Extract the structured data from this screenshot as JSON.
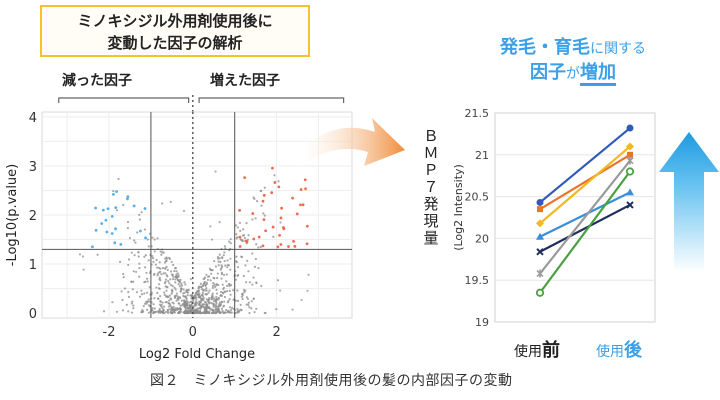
{
  "title": {
    "line1": "ミノキシジル外用剤使用後に",
    "line2": "変動した因子の解析"
  },
  "bracket_labels": {
    "decreased": "減った因子",
    "increased": "増えた因子"
  },
  "headline": {
    "line1_a": "発毛・育毛",
    "line1_b": "に関する",
    "line2_a": "因子",
    "line2_b": "が",
    "line2_c": "増加"
  },
  "caption": "図２　ミノキシジル外用剤使用後の髪の内部因子の変動",
  "colors": {
    "accent_blue": "#3aa0e8",
    "red_points": "#f06a50",
    "blue_points": "#5aaee8",
    "gray_points": "#8c8c8c",
    "title_border": "#f2c230",
    "arrow_orange": "#f08c3a"
  },
  "chart_data": [
    {
      "type": "scatter",
      "name": "volcano",
      "xlabel": "Log2 Fold Change",
      "ylabel": "-Log10(p.value)",
      "xlim": [
        -3.6,
        3.8
      ],
      "ylim": [
        -0.1,
        4.1
      ],
      "xticks": [
        -2,
        0,
        2
      ],
      "yticks": [
        0,
        1,
        2,
        3,
        4
      ],
      "threshold_x": [
        -1,
        1
      ],
      "threshold_y": 1.3,
      "center_line_x": 0,
      "grid": true,
      "groups": [
        {
          "name": "decreased",
          "color": "#5aaee8",
          "x_range": [
            -2.5,
            -1.1
          ],
          "y_range": [
            1.35,
            2.5
          ],
          "count": 22
        },
        {
          "name": "increased",
          "color": "#f06a50",
          "x_range": [
            1.1,
            2.8
          ],
          "y_range": [
            1.35,
            3.0
          ],
          "count": 38
        },
        {
          "name": "not significant",
          "color": "#8c8c8c",
          "count": 900
        }
      ]
    },
    {
      "type": "line",
      "name": "bmp7",
      "ylabel_main": "ＢＭＰ７発現量",
      "ylabel_sub": "(Log2 Intensity)",
      "categories": [
        "使用前",
        "使用後"
      ],
      "category_labels": [
        {
          "pre": "使用",
          "bold": "前"
        },
        {
          "pre": "使用",
          "bold": "後"
        }
      ],
      "ylim": [
        19,
        21.5
      ],
      "yticks": [
        "19",
        "19.5",
        "20",
        "20.5",
        "21",
        "21.5"
      ],
      "series": [
        {
          "name": "s1",
          "color": "#2e5bb8",
          "marker": "circle",
          "values": [
            20.43,
            21.32
          ]
        },
        {
          "name": "s2",
          "color": "#e8762a",
          "marker": "square",
          "values": [
            20.35,
            21.0
          ]
        },
        {
          "name": "s3",
          "color": "#f2b820",
          "marker": "diamond",
          "values": [
            20.18,
            21.1
          ]
        },
        {
          "name": "s4",
          "color": "#3a8fd8",
          "marker": "triangle",
          "values": [
            20.02,
            20.55
          ]
        },
        {
          "name": "s5",
          "color": "#1f2f5a",
          "marker": "x",
          "values": [
            19.84,
            20.4
          ]
        },
        {
          "name": "s6",
          "color": "#9a9a9a",
          "marker": "star",
          "values": [
            19.58,
            20.93
          ]
        },
        {
          "name": "s7",
          "color": "#4aa040",
          "marker": "circle-open",
          "values": [
            19.35,
            20.8
          ]
        }
      ]
    }
  ]
}
